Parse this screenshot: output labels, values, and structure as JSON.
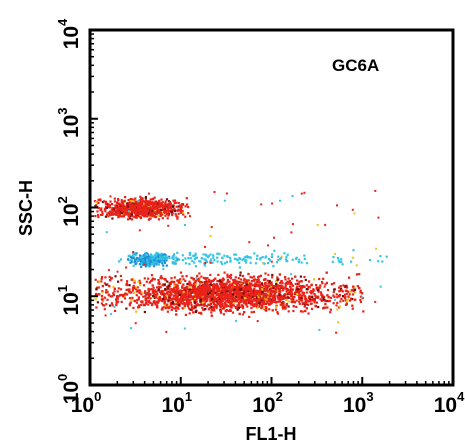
{
  "chart_data": {
    "type": "scatter",
    "title": "",
    "sample_label": "GC6A",
    "xlabel": "FL1-H",
    "ylabel": "SSC-H",
    "xscale": "log",
    "yscale": "log",
    "xlim": [
      1,
      10000
    ],
    "ylim": [
      1,
      10000
    ],
    "ticks": [
      {
        "base": "10",
        "exp": "0",
        "value": 1
      },
      {
        "base": "10",
        "exp": "1",
        "value": 10
      },
      {
        "base": "10",
        "exp": "2",
        "value": 100
      },
      {
        "base": "10",
        "exp": "3",
        "value": 1000
      },
      {
        "base": "10",
        "exp": "4",
        "value": 10000
      }
    ],
    "grid": false,
    "legend": "none",
    "colors": {
      "red_population": "#e8231a",
      "dense_core": "#6b1010",
      "blue_population": "#1e8fd6",
      "cyan_population": "#35c6e6",
      "yellow_population": "#f2c418"
    },
    "clusters": [
      {
        "name": "",
        "color": "red_population",
        "x_range": [
          1.1,
          1000
        ],
        "y_range": [
          6,
          19
        ],
        "center": [
          30,
          11
        ],
        "count": 2600
      },
      {
        "name": "",
        "color": "red_population",
        "x_range": [
          1.1,
          12
        ],
        "y_range": [
          75,
          140
        ],
        "center": [
          3.5,
          100
        ],
        "count": 900
      },
      {
        "name": "",
        "color": "blue_population",
        "x_range": [
          2.5,
          9
        ],
        "y_range": [
          22,
          34
        ],
        "center": [
          4.5,
          27
        ],
        "count": 260
      },
      {
        "name": "",
        "color": "cyan_population",
        "x_range": [
          2,
          2000
        ],
        "y_range": [
          21,
          34
        ],
        "center": [
          30,
          27
        ],
        "count": 160
      }
    ]
  }
}
